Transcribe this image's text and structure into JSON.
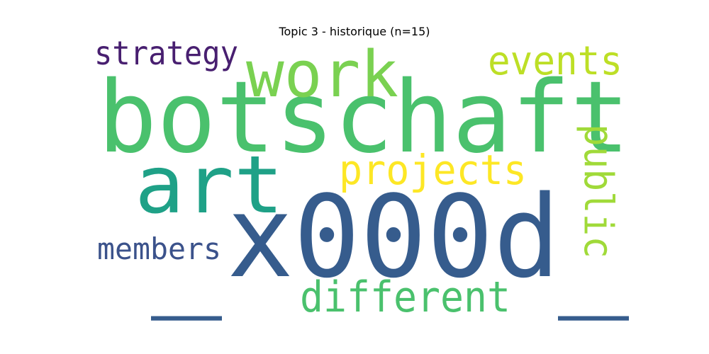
{
  "chart_data": {
    "type": "wordcloud",
    "title": "Topic 3 - historique (n=15)",
    "words": [
      {
        "text": "botschaft",
        "color": "#4ac16d"
      },
      {
        "text": "x000d",
        "color": "#365c8d"
      },
      {
        "text": "_",
        "color": "#365c8d"
      },
      {
        "text": "_",
        "color": "#365c8d"
      },
      {
        "text": "art",
        "color": "#1fa187"
      },
      {
        "text": "work",
        "color": "#7ad151"
      },
      {
        "text": "events",
        "color": "#bddf26"
      },
      {
        "text": "strategy",
        "color": "#481f70"
      },
      {
        "text": "projects",
        "color": "#fde725"
      },
      {
        "text": "public",
        "color": "#a0da39"
      },
      {
        "text": "members",
        "color": "#3b528b"
      },
      {
        "text": "different",
        "color": "#4ac16d"
      }
    ]
  }
}
